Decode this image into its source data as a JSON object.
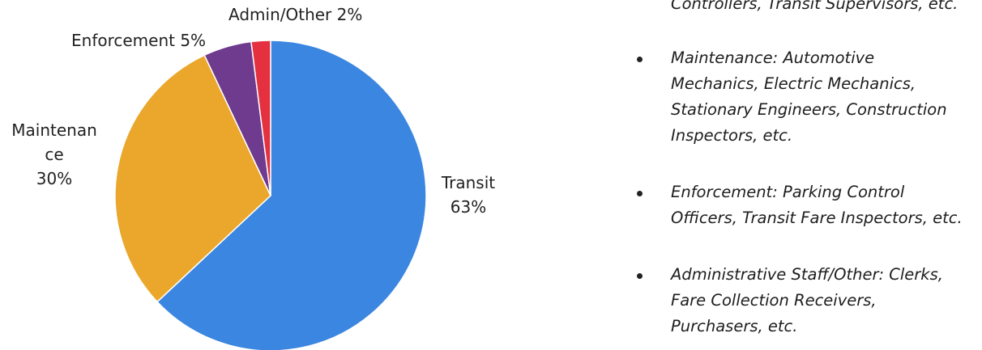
{
  "chart_data": {
    "type": "pie",
    "categories": [
      "Transit",
      "Maintenance",
      "Enforcement",
      "Admin/Other"
    ],
    "values": [
      63,
      30,
      5,
      2
    ],
    "colors": [
      "#3b86e0",
      "#eaa72c",
      "#6e3b8f",
      "#e4303f"
    ],
    "labels": {
      "transit": [
        "Transit",
        "63%"
      ],
      "maintenance": [
        "Maintenan",
        "ce",
        "30%"
      ],
      "enforcement": [
        "Enforcement 5%"
      ],
      "admin": [
        "Admin/Other 2%"
      ]
    }
  },
  "legend": {
    "bullets": [
      {
        "lines": [
          "Controllers, Transit Supervisors, etc."
        ]
      },
      {
        "lines": [
          "Maintenance: Automotive",
          "Mechanics, Electric Mechanics,",
          "Stationary Engineers, Construction",
          "Inspectors, etc."
        ]
      },
      {
        "lines": [
          "Enforcement: Parking Control",
          "Officers, Transit Fare Inspectors, etc."
        ]
      },
      {
        "lines": [
          "Administrative Staff/Other: Clerks,",
          "Fare Collection Receivers,",
          "Purchasers, etc."
        ]
      }
    ]
  }
}
